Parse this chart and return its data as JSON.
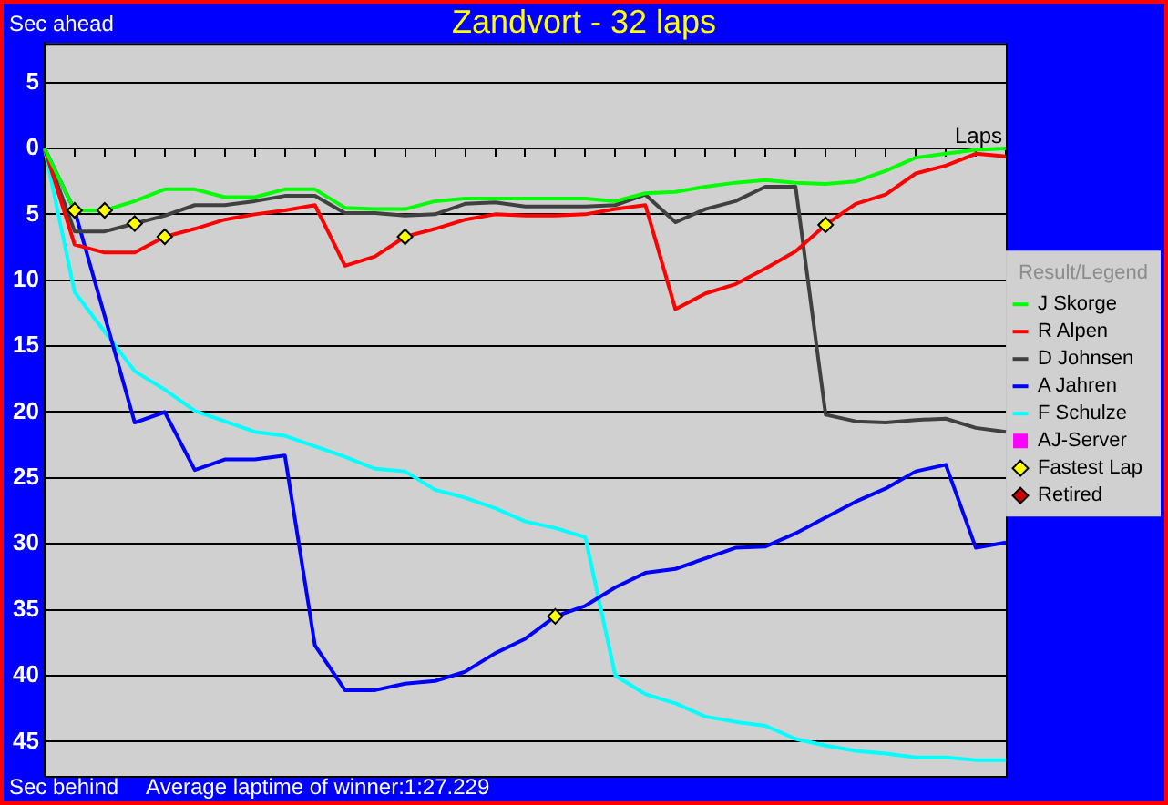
{
  "chart_data": {
    "type": "line",
    "title": "Zandvort - 32 laps",
    "xlabel": "Laps",
    "legend_title": "Result/Legend",
    "annotations": [
      "Sec ahead",
      "Sec behind",
      "Average laptime of winner:1:27.229"
    ],
    "categories": [
      null,
      null,
      null,
      null,
      null,
      null,
      null,
      null,
      null,
      null,
      null,
      null,
      null,
      null,
      null,
      null,
      null,
      null,
      null,
      null,
      null,
      null,
      null,
      null,
      null,
      null,
      null,
      null,
      null,
      null,
      null,
      null,
      null
    ],
    "ylim": [
      47.6,
      -8
    ],
    "yticks": [
      {
        "value": -5,
        "label": "5"
      },
      {
        "value": 0,
        "label": "0"
      },
      {
        "value": 5,
        "label": "5"
      },
      {
        "value": 10,
        "label": "10"
      },
      {
        "value": 15,
        "label": "15"
      },
      {
        "value": 20,
        "label": "20"
      },
      {
        "value": 25,
        "label": "25"
      },
      {
        "value": 30,
        "label": "30"
      },
      {
        "value": 35,
        "label": "35"
      },
      {
        "value": 40,
        "label": "40"
      },
      {
        "value": 45,
        "label": "45"
      }
    ],
    "grid": "y",
    "legend": "right",
    "marker": "none",
    "line_style": "solid",
    "series": [
      {
        "name": "J Skorge",
        "color": "#00ff00",
        "values": [
          0,
          4.7,
          4.7,
          4.0,
          3.1,
          3.1,
          3.7,
          3.7,
          3.1,
          3.1,
          4.5,
          4.6,
          4.6,
          4.0,
          3.8,
          3.8,
          3.8,
          3.8,
          3.8,
          4.0,
          3.4,
          3.3,
          2.9,
          2.6,
          2.4,
          2.6,
          2.7,
          2.5,
          1.7,
          0.7,
          0.4,
          0.1,
          0
        ]
      },
      {
        "name": "R Alpen",
        "color": "#ff0000",
        "values": [
          0,
          7.3,
          7.9,
          7.9,
          6.7,
          6.1,
          5.4,
          5.0,
          4.7,
          4.3,
          8.9,
          8.2,
          6.7,
          6.1,
          5.4,
          5.0,
          5.1,
          5.1,
          5.0,
          4.6,
          4.3,
          12.2,
          11.0,
          10.3,
          9.1,
          7.8,
          5.8,
          4.2,
          3.5,
          1.9,
          1.3,
          0.4,
          0.6
        ]
      },
      {
        "name": "D Johnsen",
        "color": "#404040",
        "values": [
          0,
          6.3,
          6.3,
          5.7,
          5.1,
          4.3,
          4.3,
          4.0,
          3.6,
          3.6,
          4.9,
          4.9,
          5.1,
          5.0,
          4.2,
          4.1,
          4.4,
          4.4,
          4.4,
          4.3,
          3.5,
          5.6,
          4.6,
          4.0,
          2.9,
          2.9,
          20.2,
          20.7,
          20.8,
          20.6,
          20.5,
          21.2,
          21.5
        ]
      },
      {
        "name": "A Jahren",
        "color": "#0000ff",
        "values": [
          0,
          4.7,
          12.7,
          20.8,
          20.0,
          24.4,
          23.6,
          23.6,
          23.3,
          37.7,
          41.1,
          41.1,
          40.6,
          40.4,
          39.7,
          38.3,
          37.2,
          35.5,
          34.7,
          33.3,
          32.2,
          31.9,
          31.1,
          30.3,
          30.2,
          29.2,
          28.0,
          26.8,
          25.8,
          24.5,
          24.0,
          30.3,
          29.9
        ]
      },
      {
        "name": "F Schulze",
        "color": "#00ffff",
        "values": [
          0,
          10.9,
          13.9,
          16.9,
          18.3,
          19.9,
          20.7,
          21.5,
          21.8,
          22.6,
          23.4,
          24.3,
          24.5,
          25.9,
          26.5,
          27.3,
          28.3,
          28.8,
          29.5,
          40.0,
          41.4,
          42.1,
          43.1,
          43.5,
          43.8,
          44.8,
          45.3,
          45.7,
          45.9,
          46.2,
          46.2,
          46.4,
          46.4
        ]
      },
      {
        "name": "AJ-Server",
        "color": "#ff00ff",
        "marker": "square",
        "values": [
          null,
          null,
          null,
          null,
          null,
          null,
          null,
          null,
          null,
          null,
          null,
          null,
          null,
          null,
          null,
          null,
          null,
          null,
          null,
          null,
          null,
          null,
          null,
          null,
          null,
          null,
          null,
          null,
          null,
          null,
          null,
          null,
          null
        ]
      },
      {
        "name": "Fastest Lap",
        "type": "scatter",
        "marker": "diamond",
        "color": "#ffff00",
        "values": [
          null,
          4.7,
          4.7,
          5.7,
          6.7,
          null,
          null,
          null,
          null,
          null,
          null,
          null,
          6.7,
          null,
          null,
          null,
          null,
          35.5,
          null,
          null,
          null,
          null,
          null,
          null,
          null,
          null,
          5.8,
          null,
          null,
          null,
          null,
          null,
          null
        ]
      },
      {
        "name": "Retired",
        "type": "scatter",
        "marker": "diamond",
        "color": "#cc0000",
        "values": [
          null,
          null,
          null,
          null,
          null,
          null,
          null,
          null,
          null,
          null,
          null,
          null,
          null,
          null,
          null,
          null,
          null,
          null,
          null,
          null,
          null,
          null,
          null,
          null,
          null,
          null,
          null,
          null,
          null,
          null,
          null,
          null,
          null
        ]
      }
    ]
  }
}
